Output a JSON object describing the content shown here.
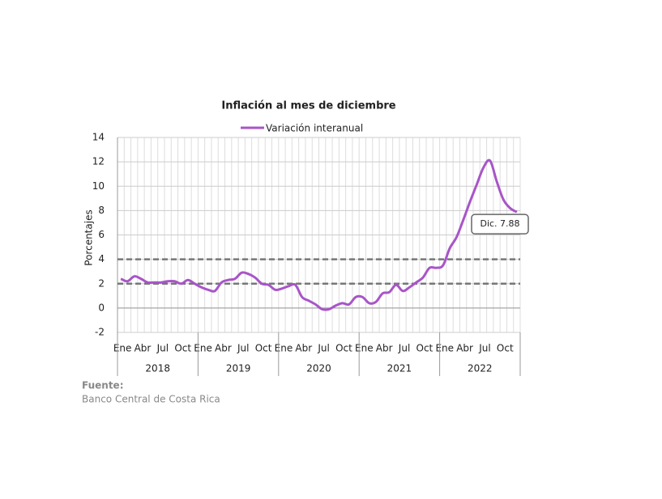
{
  "chart_data": {
    "type": "line",
    "title": "Inflación al mes de diciembre",
    "ylabel": "Porcentajes",
    "categories": [
      "Ene",
      null,
      null,
      "Abr",
      null,
      null,
      "Jul",
      null,
      null,
      "Oct",
      null,
      null,
      "Ene",
      null,
      null,
      "Abr",
      null,
      null,
      "Jul",
      null,
      null,
      "Oct",
      null,
      null,
      "Ene",
      null,
      null,
      "Abr",
      null,
      null,
      "Jul",
      null,
      null,
      "Oct",
      null,
      null,
      "Ene",
      null,
      null,
      "Abr",
      null,
      null,
      "Jul",
      null,
      null,
      "Oct",
      null,
      null,
      "Ene",
      null,
      null,
      "Abr",
      null,
      null,
      "Jul",
      null,
      null,
      "Oct",
      null,
      null
    ],
    "years": [
      "2018",
      "2019",
      "2020",
      "2021",
      "2022"
    ],
    "series": [
      {
        "name": "Variación interanual",
        "color": "#a855c8",
        "values": [
          2.4,
          2.2,
          2.6,
          2.4,
          2.1,
          2.1,
          2.1,
          2.2,
          2.2,
          2.0,
          2.3,
          2.0,
          1.7,
          1.5,
          1.4,
          2.1,
          2.3,
          2.4,
          2.9,
          2.8,
          2.5,
          2.0,
          1.9,
          1.5,
          1.6,
          1.8,
          1.9,
          0.9,
          0.6,
          0.3,
          -0.1,
          -0.1,
          0.2,
          0.4,
          0.3,
          0.9,
          0.9,
          0.4,
          0.5,
          1.2,
          1.3,
          1.9,
          1.4,
          1.7,
          2.1,
          2.5,
          3.3,
          3.3,
          3.5,
          4.9,
          5.8,
          7.2,
          8.7,
          10.1,
          11.5,
          12.1,
          10.4,
          8.9,
          8.2,
          7.88
        ]
      }
    ],
    "reference_lines": [
      2,
      4
    ],
    "annotation": "Dic. 7.88",
    "ylim": [
      -2,
      14
    ],
    "yticks": [
      -2,
      0,
      2,
      4,
      6,
      8,
      10,
      12,
      14
    ],
    "grid": true,
    "source_title": "Fuente:",
    "source": "Banco Central de Costa Rica"
  }
}
